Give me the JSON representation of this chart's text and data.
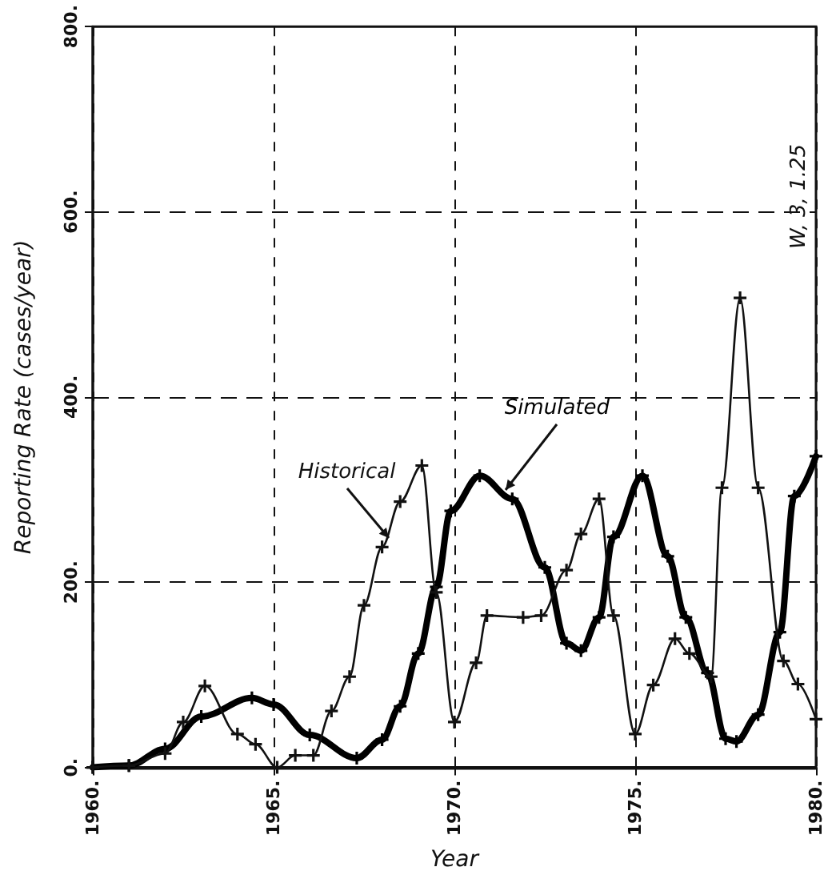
{
  "chart_data": {
    "type": "line",
    "xlabel": "Year",
    "ylabel": "Reporting Rate (cases/year)",
    "xlim": [
      1960,
      1980
    ],
    "xticks": [
      {
        "value": 1960,
        "label": "1960."
      },
      {
        "value": 1965,
        "label": "1965."
      },
      {
        "value": 1970,
        "label": "1970."
      },
      {
        "value": 1975,
        "label": "1975."
      },
      {
        "value": 1980,
        "label": "1980."
      }
    ],
    "ylim": [
      0,
      800
    ],
    "yticks": [
      {
        "value": 0,
        "label": "0."
      },
      {
        "value": 200,
        "label": "200."
      },
      {
        "value": 400,
        "label": "400."
      },
      {
        "value": 600,
        "label": "600."
      },
      {
        "value": 800,
        "label": "800."
      }
    ],
    "grid": true,
    "marker": "cross",
    "line_style": "solid",
    "series": [
      {
        "name": "Historical",
        "color": "#111111",
        "x": [
          1960,
          1961,
          1962,
          1962.5,
          1963.1,
          1964,
          1964.5,
          1965.1,
          1965.6,
          1966.1,
          1966.6,
          1967.1,
          1967.5,
          1968,
          1968.5,
          1969.1,
          1969.5,
          1970,
          1970.6,
          1970.9,
          1971.9,
          1972.4,
          1973.1,
          1973.5,
          1974,
          1974.4,
          1975,
          1975.5,
          1976.1,
          1976.5,
          1977.1,
          1977.4,
          1977.9,
          1978.4,
          1979.1,
          1979.5,
          1980
        ],
        "values": [
          0,
          2,
          15,
          49,
          88,
          36,
          25,
          0,
          13,
          13,
          61,
          98,
          175,
          238,
          287,
          326,
          189,
          49,
          113,
          164,
          162,
          164,
          213,
          252,
          290,
          164,
          36,
          89,
          139,
          123,
          98,
          302,
          507,
          302,
          115,
          90,
          52
        ]
      },
      {
        "name": "Simulated",
        "color": "#000000",
        "x": [
          1960,
          1961,
          1962,
          1963,
          1964.4,
          1965,
          1966,
          1967.3,
          1968,
          1968.5,
          1969,
          1969.5,
          1969.9,
          1970.7,
          1971.6,
          1972.5,
          1973.1,
          1973.5,
          1974,
          1974.4,
          1975.2,
          1975.9,
          1976.4,
          1977,
          1977.5,
          1977.8,
          1978.4,
          1979,
          1979.4,
          1980
        ],
        "values": [
          0,
          2,
          20,
          55,
          75,
          68,
          35,
          10,
          30,
          66,
          123,
          195,
          277,
          315,
          290,
          216,
          134,
          126,
          162,
          249,
          315,
          228,
          162,
          102,
          31,
          28,
          57,
          146,
          293,
          336
        ]
      }
    ],
    "annotations": [
      "W, 3, 1.25"
    ]
  }
}
